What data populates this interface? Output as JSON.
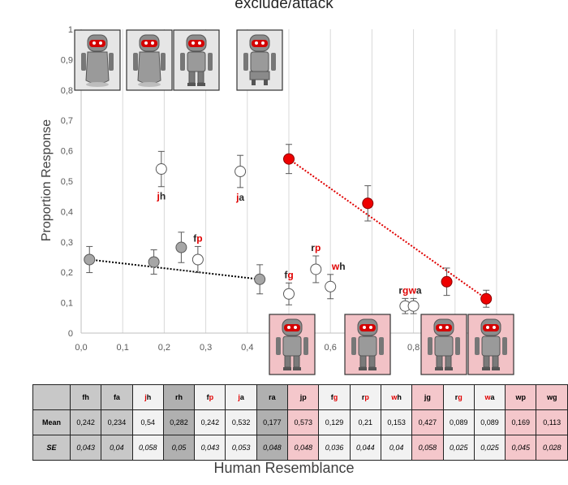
{
  "chart_data": {
    "type": "scatter",
    "title": "exclude/attack",
    "xlabel": "Human Resemblance",
    "ylabel": "Proportion Response",
    "xlim": [
      0,
      1
    ],
    "ylim": [
      0,
      1
    ],
    "x_ticks": [
      "0,0",
      "0,1",
      "0,2",
      "0,3",
      "0,4",
      "0,5",
      "0,6",
      "0,7",
      "0,8",
      "0,9",
      "1"
    ],
    "y_ticks": [
      "0",
      "0,1",
      "0,2",
      "0,3",
      "0,4",
      "0,5",
      "0,6",
      "0,7",
      "0,8",
      "0,9",
      "1"
    ],
    "grid": "vertical",
    "points": [
      {
        "id": "fh",
        "x": 0.02,
        "y": 0.242,
        "se": 0.043,
        "style": "gray"
      },
      {
        "id": "fa",
        "x": 0.175,
        "y": 0.234,
        "se": 0.04,
        "style": "gray"
      },
      {
        "id": "jh",
        "x": 0.193,
        "y": 0.54,
        "se": 0.058,
        "style": "white",
        "label_black": "h",
        "label_red": "j",
        "label_order": "red-first"
      },
      {
        "id": "rh",
        "x": 0.241,
        "y": 0.282,
        "se": 0.05,
        "style": "gray"
      },
      {
        "id": "fp",
        "x": 0.281,
        "y": 0.242,
        "se": 0.043,
        "style": "white",
        "label_black": "f",
        "label_red": "p",
        "label_order": "black-first"
      },
      {
        "id": "ja",
        "x": 0.383,
        "y": 0.532,
        "se": 0.053,
        "style": "white",
        "label_black": "a",
        "label_red": "j",
        "label_order": "red-first"
      },
      {
        "id": "ra",
        "x": 0.43,
        "y": 0.177,
        "se": 0.048,
        "style": "gray"
      },
      {
        "id": "jp",
        "x": 0.5,
        "y": 0.573,
        "se": 0.048,
        "style": "red"
      },
      {
        "id": "fg",
        "x": 0.5,
        "y": 0.129,
        "se": 0.036,
        "style": "white",
        "label_black": "f",
        "label_red": "g",
        "label_order": "black-first"
      },
      {
        "id": "rp",
        "x": 0.565,
        "y": 0.21,
        "se": 0.044,
        "style": "white",
        "label_black": "r",
        "label_red": "p",
        "label_order": "black-first"
      },
      {
        "id": "wh",
        "x": 0.6,
        "y": 0.153,
        "se": 0.04,
        "style": "white",
        "label_black": "h",
        "label_red": "w",
        "label_order": "red-first"
      },
      {
        "id": "jg",
        "x": 0.69,
        "y": 0.427,
        "se": 0.058,
        "style": "red"
      },
      {
        "id": "rg",
        "x": 0.78,
        "y": 0.089,
        "se": 0.025,
        "style": "white",
        "label_black": "r",
        "label_red": "g",
        "label_order": "black-first"
      },
      {
        "id": "wa",
        "x": 0.8,
        "y": 0.089,
        "se": 0.025,
        "style": "white",
        "label_black": "a",
        "label_red": "w",
        "label_order": "red-first"
      },
      {
        "id": "wp",
        "x": 0.88,
        "y": 0.169,
        "se": 0.045,
        "style": "red"
      },
      {
        "id": "wg",
        "x": 0.975,
        "y": 0.113,
        "se": 0.028,
        "style": "red"
      }
    ],
    "trendlines": [
      {
        "color": "#000000",
        "x": [
          0.02,
          0.43
        ],
        "y": [
          0.242,
          0.177
        ]
      },
      {
        "color": "#e00000",
        "x": [
          0.5,
          0.975
        ],
        "y": [
          0.573,
          0.113
        ]
      }
    ],
    "colors": {
      "gray": "#a6a6a6",
      "white": "#ffffff",
      "red": "#ee0000",
      "accent_red": "#e00000",
      "table_red": "#f4c7cb",
      "table_gray": "#c8c8c8"
    }
  },
  "table": {
    "row_labels": [
      "Mean",
      "SE"
    ],
    "columns": [
      {
        "black": "fh",
        "red": "",
        "order": "black-first",
        "bg": "c1",
        "mean": "0,242",
        "se": "0,043"
      },
      {
        "black": "fa",
        "red": "",
        "order": "black-first",
        "bg": "c1",
        "mean": "0,234",
        "se": "0,04"
      },
      {
        "black": "h",
        "red": "j",
        "order": "red-first",
        "bg": "c0",
        "mean": "0,54",
        "se": "0,058"
      },
      {
        "black": "rh",
        "red": "",
        "order": "black-first",
        "bg": "c2",
        "mean": "0,282",
        "se": "0,05"
      },
      {
        "black": "f",
        "red": "p",
        "order": "black-first",
        "bg": "c0",
        "mean": "0,242",
        "se": "0,043"
      },
      {
        "black": "a",
        "red": "j",
        "order": "red-first",
        "bg": "c0",
        "mean": "0,532",
        "se": "0,053"
      },
      {
        "black": "ra",
        "red": "",
        "order": "black-first",
        "bg": "c2",
        "mean": "0,177",
        "se": "0,048"
      },
      {
        "black": "jp",
        "red": "",
        "order": "black-first",
        "bg": "cr",
        "mean": "0,573",
        "se": "0,048"
      },
      {
        "black": "f",
        "red": "g",
        "order": "black-first",
        "bg": "c0",
        "mean": "0,129",
        "se": "0,036"
      },
      {
        "black": "r",
        "red": "p",
        "order": "black-first",
        "bg": "c0",
        "mean": "0,21",
        "se": "0,044"
      },
      {
        "black": "h",
        "red": "w",
        "order": "red-first",
        "bg": "c0",
        "mean": "0,153",
        "se": "0,04"
      },
      {
        "black": "jg",
        "red": "",
        "order": "black-first",
        "bg": "cr",
        "mean": "0,427",
        "se": "0,058"
      },
      {
        "black": "r",
        "red": "g",
        "order": "black-first",
        "bg": "c0",
        "mean": "0,089",
        "se": "0,025"
      },
      {
        "black": "a",
        "red": "w",
        "order": "red-first",
        "bg": "c0",
        "mean": "0,089",
        "se": "0,025"
      },
      {
        "black": "wp",
        "red": "",
        "order": "black-first",
        "bg": "cr",
        "mean": "0,169",
        "se": "0,045"
      },
      {
        "black": "wg",
        "red": "",
        "order": "black-first",
        "bg": "cr",
        "mean": "0,113",
        "se": "0,028"
      }
    ]
  },
  "robot_images": [
    {
      "name": "robot-fh-image",
      "style": "gray",
      "icon": "robot-icon"
    },
    {
      "name": "robot-fa-image",
      "style": "gray",
      "icon": "robot-icon"
    },
    {
      "name": "robot-rh-image",
      "style": "gray",
      "icon": "robot-icon"
    },
    {
      "name": "robot-ra-image",
      "style": "gray",
      "icon": "robot-icon"
    },
    {
      "name": "robot-jp-image",
      "style": "pink",
      "icon": "robot-icon"
    },
    {
      "name": "robot-jg-image",
      "style": "pink",
      "icon": "robot-icon"
    },
    {
      "name": "robot-wp-image",
      "style": "pink",
      "icon": "robot-icon"
    },
    {
      "name": "robot-wg-image",
      "style": "pink",
      "icon": "robot-icon"
    }
  ]
}
